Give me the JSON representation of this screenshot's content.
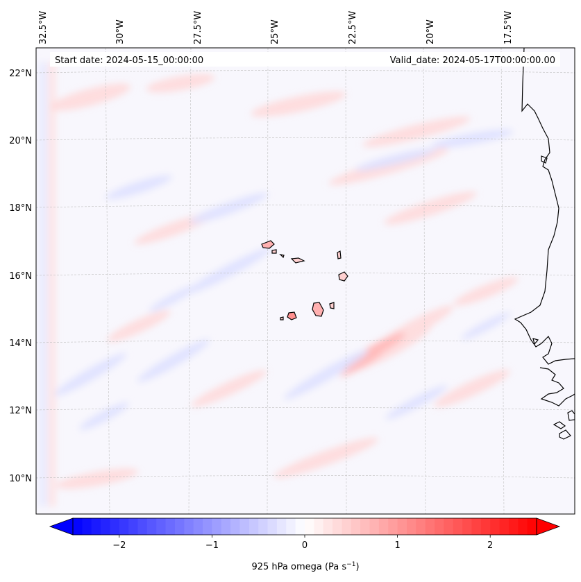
{
  "map": {
    "start_date_label": "Start date: 2024-05-15_00:00:00",
    "valid_date_label": "Valid_date: 2024-05-17T00:00:00.00",
    "lon_ticks": [
      "32.5°W",
      "30°W",
      "27.5°W",
      "25°W",
      "22.5°W",
      "20°W",
      "17.5°W"
    ],
    "lat_ticks": [
      "22°N",
      "20°N",
      "18°N",
      "16°N",
      "14°N",
      "12°N",
      "10°N"
    ],
    "field": "925 hPa omega",
    "units": "Pa s⁻¹"
  },
  "colorbar": {
    "label_prefix": "925 hPa omega (Pa s",
    "label_exponent": "−1",
    "label_suffix": ")",
    "ticks": [
      "−2",
      "−1",
      "0",
      "1",
      "2"
    ],
    "tick_values": [
      -2,
      -1,
      0,
      1,
      2
    ],
    "vmin": -2.5,
    "vmax": 2.5,
    "n_levels": 50,
    "colors": {
      "low": "#0000ff",
      "mid": "#ffffff",
      "high": "#ff0000"
    }
  },
  "colors": {
    "land_outline": "#000000",
    "grid": "#b0b0b0",
    "background": "#f7f7ff"
  }
}
